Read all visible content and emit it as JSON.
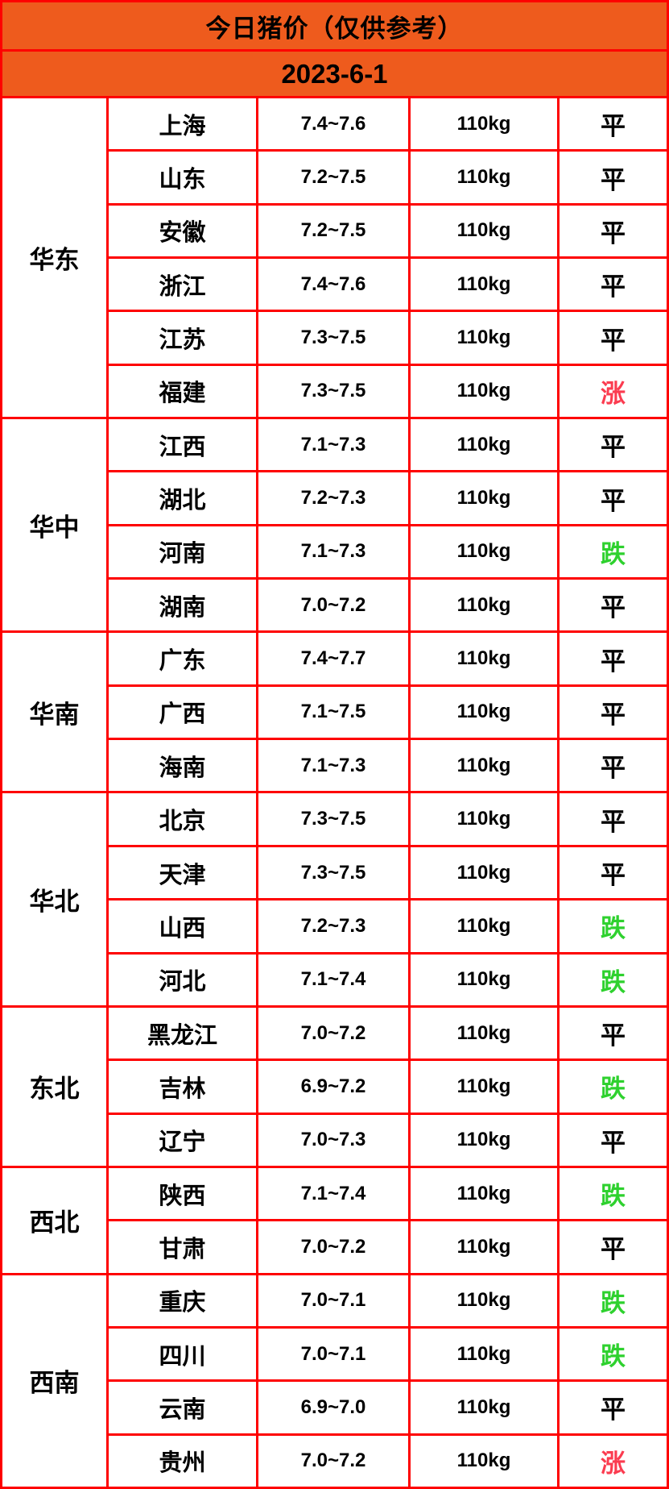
{
  "title": "今日猪价（仅供参考）",
  "date": "2023-6-1",
  "weight_unit_note": "110kg",
  "colors": {
    "header_orange": "#ee5b1d",
    "grid_red": "#fe0000",
    "text_black": "#000000",
    "trend_up_red": "#fb3c50",
    "trend_down_green": "#2ed12e"
  },
  "trend_colors": {
    "平": "#000000",
    "涨": "#fb3c50",
    "跌": "#2ed12e"
  },
  "regions": [
    {
      "name": "华东",
      "rows": [
        {
          "province": "上海",
          "price": "7.4~7.6",
          "weight": "110kg",
          "trend": "平"
        },
        {
          "province": "山东",
          "price": "7.2~7.5",
          "weight": "110kg",
          "trend": "平"
        },
        {
          "province": "安徽",
          "price": "7.2~7.5",
          "weight": "110kg",
          "trend": "平"
        },
        {
          "province": "浙江",
          "price": "7.4~7.6",
          "weight": "110kg",
          "trend": "平"
        },
        {
          "province": "江苏",
          "price": "7.3~7.5",
          "weight": "110kg",
          "trend": "平"
        },
        {
          "province": "福建",
          "price": "7.3~7.5",
          "weight": "110kg",
          "trend": "涨"
        }
      ]
    },
    {
      "name": "华中",
      "rows": [
        {
          "province": "江西",
          "price": "7.1~7.3",
          "weight": "110kg",
          "trend": "平"
        },
        {
          "province": "湖北",
          "price": "7.2~7.3",
          "weight": "110kg",
          "trend": "平"
        },
        {
          "province": "河南",
          "price": "7.1~7.3",
          "weight": "110kg",
          "trend": "跌"
        },
        {
          "province": "湖南",
          "price": "7.0~7.2",
          "weight": "110kg",
          "trend": "平"
        }
      ]
    },
    {
      "name": "华南",
      "rows": [
        {
          "province": "广东",
          "price": "7.4~7.7",
          "weight": "110kg",
          "trend": "平"
        },
        {
          "province": "广西",
          "price": "7.1~7.5",
          "weight": "110kg",
          "trend": "平"
        },
        {
          "province": "海南",
          "price": "7.1~7.3",
          "weight": "110kg",
          "trend": "平"
        }
      ]
    },
    {
      "name": "华北",
      "rows": [
        {
          "province": "北京",
          "price": "7.3~7.5",
          "weight": "110kg",
          "trend": "平"
        },
        {
          "province": "天津",
          "price": "7.3~7.5",
          "weight": "110kg",
          "trend": "平"
        },
        {
          "province": "山西",
          "price": "7.2~7.3",
          "weight": "110kg",
          "trend": "跌"
        },
        {
          "province": "河北",
          "price": "7.1~7.4",
          "weight": "110kg",
          "trend": "跌"
        }
      ]
    },
    {
      "name": "东北",
      "rows": [
        {
          "province": "黑龙江",
          "price": "7.0~7.2",
          "weight": "110kg",
          "trend": "平"
        },
        {
          "province": "吉林",
          "price": "6.9~7.2",
          "weight": "110kg",
          "trend": "跌"
        },
        {
          "province": "辽宁",
          "price": "7.0~7.3",
          "weight": "110kg",
          "trend": "平"
        }
      ]
    },
    {
      "name": "西北",
      "rows": [
        {
          "province": "陕西",
          "price": "7.1~7.4",
          "weight": "110kg",
          "trend": "跌"
        },
        {
          "province": "甘肃",
          "price": "7.0~7.2",
          "weight": "110kg",
          "trend": "平"
        }
      ]
    },
    {
      "name": "西南",
      "rows": [
        {
          "province": "重庆",
          "price": "7.0~7.1",
          "weight": "110kg",
          "trend": "跌"
        },
        {
          "province": "四川",
          "price": "7.0~7.1",
          "weight": "110kg",
          "trend": "跌"
        },
        {
          "province": "云南",
          "price": "6.9~7.0",
          "weight": "110kg",
          "trend": "平"
        },
        {
          "province": "贵州",
          "price": "7.0~7.2",
          "weight": "110kg",
          "trend": "涨"
        }
      ]
    }
  ]
}
